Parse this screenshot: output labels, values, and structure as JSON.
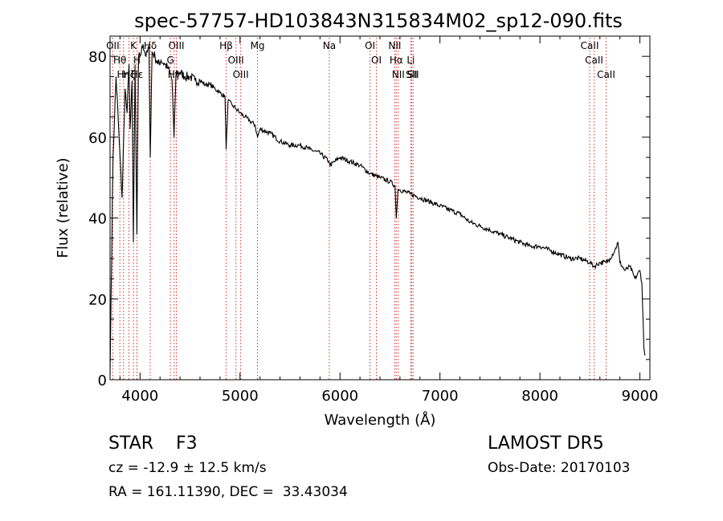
{
  "chart_data": {
    "type": "line",
    "title": "spec-57757-HD103843N315834M02_sp12-090.fits",
    "xlabel": "Wavelength (Å)",
    "ylabel": "Flux (relative)",
    "xlim": [
      3700,
      9100
    ],
    "ylim": [
      0,
      85
    ],
    "x_ticks": [
      4000,
      5000,
      6000,
      7000,
      8000,
      9000
    ],
    "y_ticks": [
      0,
      20,
      40,
      60,
      80
    ],
    "grid": false,
    "line_color": "#000000",
    "marker_color": "#cc3333",
    "series": [
      {
        "x": [
          3700,
          3710,
          3730,
          3760,
          3790,
          3820,
          3850,
          3870,
          3890,
          3900,
          3920,
          3933,
          3950,
          3968,
          3985,
          4000,
          4030,
          4060,
          4090,
          4102,
          4120,
          4150,
          4180,
          4210,
          4250,
          4280,
          4300,
          4320,
          4340,
          4360,
          4400,
          4450,
          4500,
          4550,
          4600,
          4650,
          4700,
          4750,
          4800,
          4850,
          4861,
          4880,
          4920,
          4960,
          5000,
          5050,
          5100,
          5150,
          5175,
          5200,
          5300,
          5400,
          5500,
          5600,
          5700,
          5800,
          5890,
          5900,
          6000,
          6100,
          6200,
          6300,
          6400,
          6500,
          6550,
          6563,
          6580,
          6600,
          6700,
          6800,
          6900,
          7000,
          7100,
          7200,
          7300,
          7400,
          7500,
          7600,
          7700,
          7800,
          7900,
          8000,
          8100,
          8200,
          8300,
          8400,
          8500,
          8542,
          8600,
          8662,
          8700,
          8750,
          8780,
          8800,
          8850,
          8900,
          8950,
          9000,
          9020,
          9040,
          9050
        ],
        "y": [
          1,
          20,
          55,
          75,
          60,
          45,
          72,
          66,
          78,
          62,
          74,
          34,
          78,
          36,
          80,
          80,
          83,
          80,
          82,
          55,
          81,
          80,
          78,
          79,
          78,
          77,
          76,
          74,
          60,
          76,
          76,
          75,
          75,
          74,
          74,
          73,
          73,
          72,
          71,
          70,
          57,
          69,
          68,
          67,
          66,
          65,
          64,
          63,
          60,
          62,
          61,
          59,
          58,
          58,
          57,
          56,
          54,
          53,
          55,
          54,
          53,
          51,
          50,
          49,
          48,
          40,
          47,
          47,
          46,
          45,
          44,
          43,
          42,
          41,
          39,
          38,
          37,
          36,
          35,
          34,
          33,
          33,
          32,
          31,
          30,
          30,
          29,
          28,
          29,
          29,
          30,
          32,
          34,
          29,
          27,
          28,
          25,
          27,
          24,
          8,
          6
        ]
      }
    ],
    "lines": [
      {
        "label": "OII",
        "x": 3727
      },
      {
        "label": "Hθ",
        "x": 3798
      },
      {
        "label": "Hη",
        "x": 3835
      },
      {
        "label": "Hζ",
        "x": 3889
      },
      {
        "label": "K",
        "x": 3934
      },
      {
        "label": "H",
        "x": 3969
      },
      {
        "label": "Hε",
        "x": 3970
      },
      {
        "label": "Hδ",
        "x": 4102
      },
      {
        "label": "OIII",
        "x": 4363
      },
      {
        "label": "G",
        "x": 4304
      },
      {
        "label": "Hγ",
        "x": 4341
      },
      {
        "label": "Hβ",
        "x": 4861
      },
      {
        "label": "OIII",
        "x": 4959
      },
      {
        "label": "OIII",
        "x": 5007
      },
      {
        "label": "Mg",
        "x": 5175
      },
      {
        "label": "Na",
        "x": 5893
      },
      {
        "label": "OI",
        "x": 6300
      },
      {
        "label": "OI",
        "x": 6364
      },
      {
        "label": "NII",
        "x": 6548
      },
      {
        "label": "Hα",
        "x": 6563
      },
      {
        "label": "NII",
        "x": 6583
      },
      {
        "label": "Li",
        "x": 6708
      },
      {
        "label": "SII",
        "x": 6716
      },
      {
        "label": "SII",
        "x": 6731
      },
      {
        "label": "CaII",
        "x": 8498
      },
      {
        "label": "CaII",
        "x": 8542
      },
      {
        "label": "CaII",
        "x": 8662
      }
    ]
  },
  "info": {
    "class": "STAR",
    "subclass": "F3",
    "survey": "LAMOST DR5",
    "cz": "cz = -12.9 ± 12.5 km/s",
    "obs_date": "Obs-Date: 20170103",
    "coords": "RA = 161.11390, DEC =  33.43034"
  }
}
